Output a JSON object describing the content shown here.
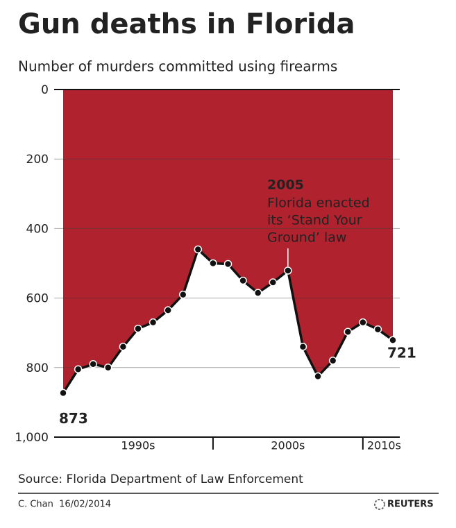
{
  "chart_data": {
    "type": "area",
    "title": "Gun deaths in Florida",
    "subtitle": "Number of murders committed using firearms",
    "x": [
      1990,
      1991,
      1992,
      1993,
      1994,
      1995,
      1996,
      1997,
      1998,
      1999,
      2000,
      2001,
      2002,
      2003,
      2004,
      2005,
      2006,
      2007,
      2008,
      2009,
      2010,
      2011,
      2012
    ],
    "values": [
      873,
      805,
      790,
      800,
      740,
      688,
      670,
      635,
      590,
      460,
      500,
      502,
      550,
      585,
      555,
      521,
      740,
      825,
      780,
      697,
      670,
      690,
      721
    ],
    "color": "#b0222e",
    "line_color": "#111111",
    "xlim": [
      1990,
      2012
    ],
    "xticks": [
      {
        "value": 1990,
        "label": "1990s"
      },
      {
        "value": 2000,
        "label": "2000s"
      },
      {
        "value": 2010,
        "label": "2010s"
      }
    ],
    "ylim": [
      0,
      1000
    ],
    "y_inverted": true,
    "yticks": [
      0,
      200,
      400,
      600,
      800,
      {
        "value": 1000,
        "label": "1,000"
      }
    ],
    "grid": true,
    "annotation": {
      "x": 2005,
      "title": "2005",
      "lines": [
        "Florida enacted",
        "its ‘Stand Your",
        "Ground’ law"
      ]
    },
    "source": "Source: Florida Department of Law Enforcement",
    "credit": "C. Chan  16/02/2014",
    "logo": "REUTERS"
  }
}
